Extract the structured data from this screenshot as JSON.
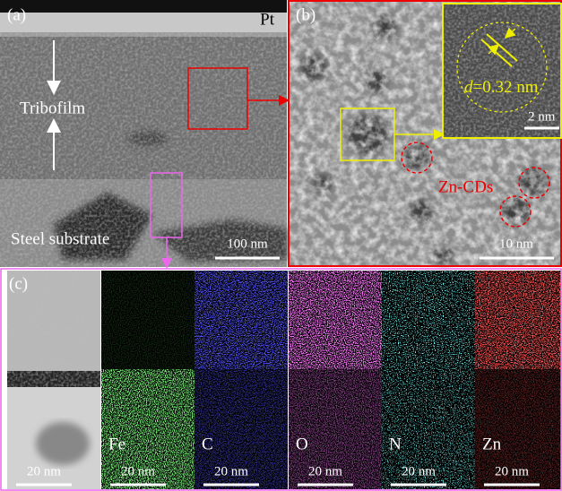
{
  "panel_a": {
    "label": "(a)",
    "pt": "Pt",
    "tribofilm": "Tribofilm",
    "substrate": "Steel substrate",
    "scale_bar": "100 nm"
  },
  "panel_b": {
    "label": "(b)",
    "d_symbol": "d",
    "d_value": "=0.32 nm",
    "inset_scale_bar": "2 nm",
    "particles": "Zn-CDs",
    "scale_bar": "10 nm"
  },
  "panel_c": {
    "label": "(c)",
    "maps": [
      {
        "scale_bar": "20 nm"
      },
      {
        "element": "Fe",
        "scale_bar": "20 nm"
      },
      {
        "element": "C",
        "scale_bar": "20 nm"
      },
      {
        "element": "O",
        "scale_bar": "20 nm"
      },
      {
        "element": "N",
        "scale_bar": "20 nm"
      },
      {
        "element": "Zn",
        "scale_bar": "20 nm"
      }
    ]
  }
}
